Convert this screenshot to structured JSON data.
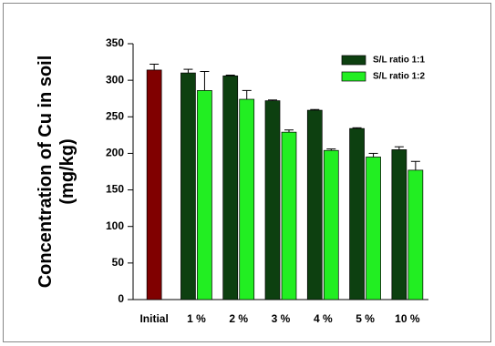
{
  "chart_data": {
    "type": "bar",
    "y_label": "Concentration of Cu in soil\n(mg/kg)",
    "categories": [
      "Initial",
      "1 %",
      "2 %",
      "3 %",
      "4 %",
      "5 %",
      "10 %"
    ],
    "series": [
      {
        "color": "#800000",
        "values": [
          314,
          null,
          null,
          null,
          null,
          null,
          null
        ],
        "errors": [
          8,
          null,
          null,
          null,
          null,
          null,
          null
        ]
      },
      {
        "name": "S/L ratio 1:1",
        "color": "#0d4010",
        "values": [
          null,
          310,
          306,
          272,
          259,
          234,
          205
        ],
        "errors": [
          null,
          5,
          1,
          1,
          1,
          1,
          4
        ]
      },
      {
        "name": "S/L ratio 1:2",
        "color": "#22ee22",
        "values": [
          null,
          286,
          274,
          229,
          204,
          195,
          177
        ],
        "errors": [
          null,
          26,
          12,
          3,
          2,
          5,
          12
        ]
      }
    ],
    "ylim": [
      0,
      350
    ],
    "yticks": [
      0,
      50,
      100,
      150,
      200,
      250,
      300,
      350
    ],
    "legend": "upper-right"
  }
}
